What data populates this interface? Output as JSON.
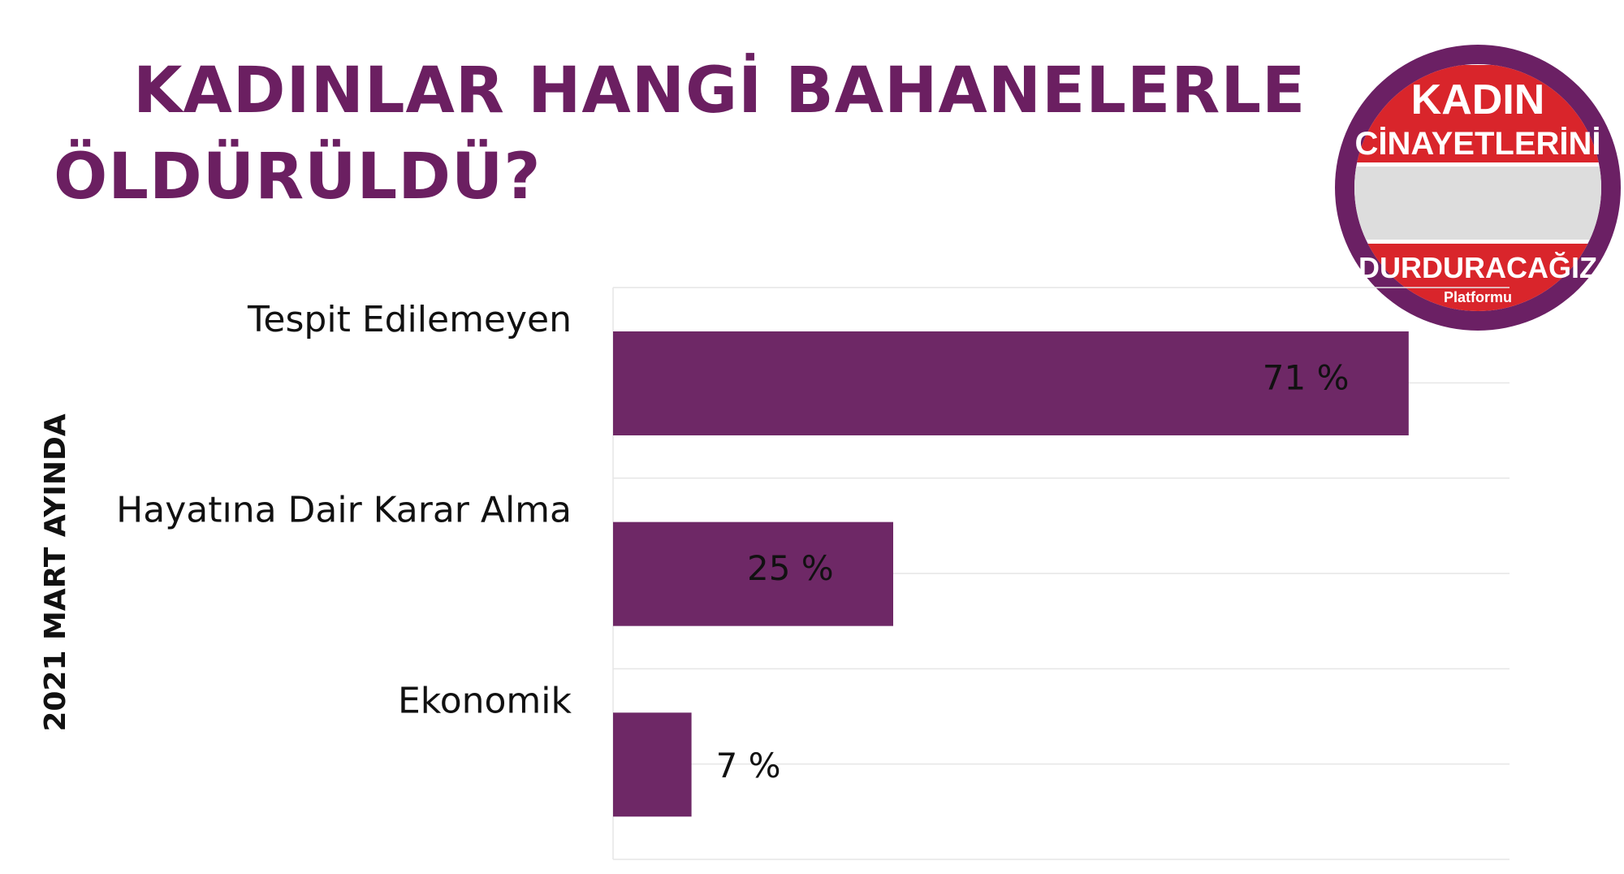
{
  "chart_data": {
    "type": "bar",
    "orientation": "horizontal",
    "title": [
      "KADINLAR HANGİ BAHANELERLE",
      "ÖLDÜRÜLDÜ?"
    ],
    "y_label": "2021 MART AYINDA",
    "categories": [
      "Tespit Edilemeyen",
      "Hayatına Dair Karar Alma",
      "Ekonomik"
    ],
    "values": [
      71,
      25,
      7
    ],
    "value_labels": [
      "71 %",
      "25 %",
      "7 %"
    ],
    "color": "#6e2866",
    "xlim": [
      0,
      80
    ]
  },
  "logo": {
    "lines": [
      "KADIN",
      "CİNAYETLERİNİ",
      "DURDURACAĞIZ",
      "Platformu"
    ]
  }
}
